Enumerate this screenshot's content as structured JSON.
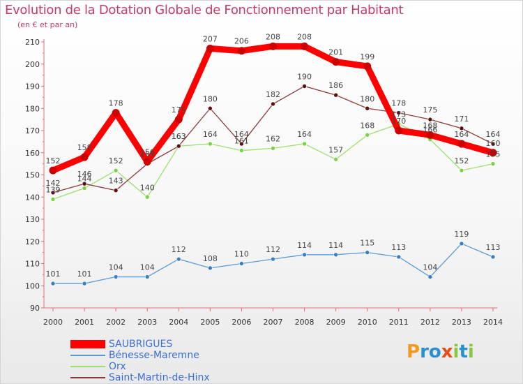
{
  "chart_data": {
    "type": "line",
    "title": "Evolution de la Dotation Globale de Fonctionnement par Habitant",
    "subtitle": "(en € et par an)",
    "categories": [
      "2000",
      "2001",
      "2002",
      "2003",
      "2004",
      "2005",
      "2006",
      "2007",
      "2008",
      "2009",
      "2010",
      "2011",
      "2012",
      "2013",
      "2014"
    ],
    "ylim": [
      90,
      210
    ],
    "yticks": [
      90,
      100,
      110,
      120,
      130,
      140,
      150,
      160,
      170,
      180,
      190,
      200,
      210
    ],
    "grid": false,
    "legend_position": "bottom-left",
    "series": [
      {
        "name": "SAUBRIGUES",
        "color": "#ff0000",
        "marker": "#cc0000",
        "values": [
          152,
          158,
          178,
          156,
          175,
          207,
          206,
          208,
          208,
          201,
          199,
          170,
          168,
          164,
          160
        ],
        "labels": [
          "152",
          "158",
          "178",
          "156",
          "175",
          "207",
          "206",
          "208",
          "208",
          "201",
          "199",
          "170",
          "168",
          "164",
          "160"
        ]
      },
      {
        "name": "Bénesse-Maremne",
        "color": "#5b9bd5",
        "marker": "#3a7fc0",
        "values": [
          101,
          101,
          104,
          104,
          112,
          108,
          110,
          112,
          114,
          114,
          115,
          113,
          104,
          119,
          113
        ],
        "labels": [
          "101",
          "101",
          "104",
          "104",
          "112",
          "108",
          "110",
          "112",
          "114",
          "114",
          "115",
          "113",
          "104",
          "119",
          "113"
        ]
      },
      {
        "name": "Orx",
        "color": "#9ee06e",
        "marker": "#7ed04a",
        "values": [
          139,
          144,
          152,
          140,
          163,
          164,
          161,
          162,
          164,
          157,
          168,
          173,
          166,
          152,
          155
        ],
        "labels": [
          "139",
          "144",
          "152",
          "140",
          "163",
          "164",
          "161",
          "162",
          "164",
          "157",
          "168",
          "173",
          "166",
          "152",
          "155"
        ]
      },
      {
        "name": "Saint-Martin-de-Hinx",
        "color": "#8b3a3a",
        "marker": "#5a1010",
        "values": [
          142,
          146,
          143,
          155,
          163,
          180,
          164,
          182,
          190,
          186,
          180,
          178,
          175,
          171,
          164
        ],
        "labels": [
          "142",
          "146",
          "143",
          "155",
          "163",
          "180",
          "164",
          "182",
          "190",
          "186",
          "180",
          "178",
          "175",
          "171",
          "164"
        ]
      }
    ]
  },
  "legend": {
    "items": [
      {
        "label": "SAUBRIGUES",
        "color": "#ff0000",
        "text_color": "#3b6fd8"
      },
      {
        "label": "Bénesse-Maremne",
        "color": "#5b9bd5",
        "text_color": "#3b6fd8"
      },
      {
        "label": "Orx",
        "color": "#9ee06e",
        "text_color": "#3b6fd8"
      },
      {
        "label": "Saint-Martin-de-Hinx",
        "color": "#8b3a3a",
        "text_color": "#3b6fd8"
      }
    ]
  },
  "brand": {
    "logo_letters": [
      "P",
      "r",
      "o",
      "x",
      "i",
      "t",
      "i"
    ],
    "logo_colors": [
      "#f39a1e",
      "#2a8fd0",
      "#2a8fd0",
      "#e84b1a",
      "#8cc63e",
      "#2a8fd0",
      "#8cc63e"
    ]
  }
}
